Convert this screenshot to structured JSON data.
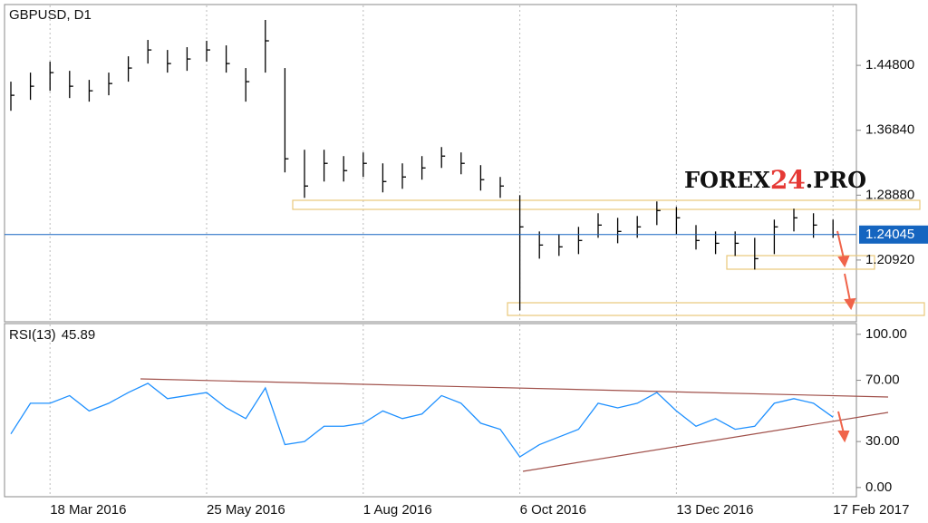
{
  "watermark": [
    "FOREX",
    "24",
    ".PRO"
  ],
  "chart_data": [
    {
      "type": "ohlc",
      "title": "GBPUSD, D1",
      "color": "#000000",
      "categories": [
        null,
        null,
        "18 Mar 2016",
        null,
        null,
        null,
        null,
        null,
        null,
        null,
        "25 May 2016",
        null,
        null,
        null,
        null,
        null,
        null,
        null,
        "1 Aug 2016",
        null,
        null,
        null,
        null,
        null,
        null,
        null,
        "6 Oct 2016",
        null,
        null,
        null,
        null,
        null,
        null,
        null,
        "13 Dec 2016",
        null,
        null,
        null,
        null,
        null,
        null,
        null,
        "17 Feb 2017"
      ],
      "high": [
        1.428,
        1.4391,
        1.4525,
        1.4413,
        1.4302,
        1.4391,
        1.4591,
        1.4792,
        1.4669,
        1.4703,
        1.4781,
        1.4725,
        1.4447,
        1.5037,
        1.4447,
        1.3445,
        1.3445,
        1.3367,
        1.3412,
        1.3278,
        1.3278,
        1.3367,
        1.3478,
        1.3412,
        1.3256,
        1.3111,
        1.2888,
        1.2443,
        1.241,
        1.2499,
        1.2666,
        1.261,
        1.2632,
        1.2811,
        1.2744,
        1.2521,
        1.2443,
        1.2443,
        1.2365,
        1.2588,
        1.2722,
        1.2666,
        1.2588
      ],
      "low": [
        1.3923,
        1.4057,
        1.4168,
        1.4079,
        1.4035,
        1.4113,
        1.428,
        1.4502,
        1.4391,
        1.4413,
        1.4525,
        1.4391,
        1.4035,
        1.4391,
        1.3167,
        1.2855,
        1.3055,
        1.3055,
        1.3111,
        1.2922,
        1.2966,
        1.3078,
        1.3222,
        1.3144,
        1.2944,
        1.2855,
        1.1475,
        1.2109,
        1.2143,
        1.2165,
        1.2365,
        1.2298,
        1.2365,
        1.2521,
        1.241,
        1.2221,
        1.2165,
        1.2143,
        1.1976,
        1.2165,
        1.2443,
        1.2365,
        1.2365
      ],
      "close": [
        1.4113,
        1.4224,
        1.4391,
        1.4224,
        1.4168,
        1.4257,
        1.4447,
        1.4669,
        1.4502,
        1.4558,
        1.4669,
        1.4502,
        1.428,
        1.4781,
        1.3334,
        1.3,
        1.3278,
        1.3189,
        1.3278,
        1.3055,
        1.3111,
        1.3222,
        1.3367,
        1.3278,
        1.3078,
        1.3,
        1.2499,
        1.2276,
        1.2254,
        1.2332,
        1.2521,
        1.2443,
        1.2499,
        1.2699,
        1.261,
        1.2332,
        1.2298,
        1.2298,
        1.2109,
        1.2499,
        1.261,
        1.2521,
        1.2405
      ],
      "last_price": 1.24045,
      "last_price_color": "#1565c0",
      "ylim": [
        1.1335,
        1.5226
      ],
      "yticks": [
        {
          "value": 1.448,
          "label": "1.44800"
        },
        {
          "value": 1.3684,
          "label": "1.36840"
        },
        {
          "value": 1.2888,
          "label": "1.28880"
        },
        {
          "value": 1.2092,
          "label": "1.20920"
        }
      ],
      "grid": true
    },
    {
      "type": "line",
      "title": "RSI(13)",
      "color": "#1e90ff",
      "values": [
        35,
        55,
        55,
        60,
        50,
        55,
        62,
        68,
        58,
        60,
        62,
        52,
        45,
        65,
        28,
        30,
        40,
        40,
        42,
        50,
        45,
        48,
        60,
        55,
        42,
        38,
        20,
        28,
        33,
        38,
        55,
        52,
        55,
        62,
        50,
        40,
        45,
        38,
        40,
        55,
        58,
        55,
        45.89
      ],
      "ylim": [
        -6,
        107
      ],
      "yticks": [
        {
          "value": 100,
          "label": "100.00"
        },
        {
          "value": 70,
          "label": "70.00"
        },
        {
          "value": 30,
          "label": "30.00"
        },
        {
          "value": 0,
          "label": "0.00"
        }
      ],
      "grid": true
    }
  ]
}
